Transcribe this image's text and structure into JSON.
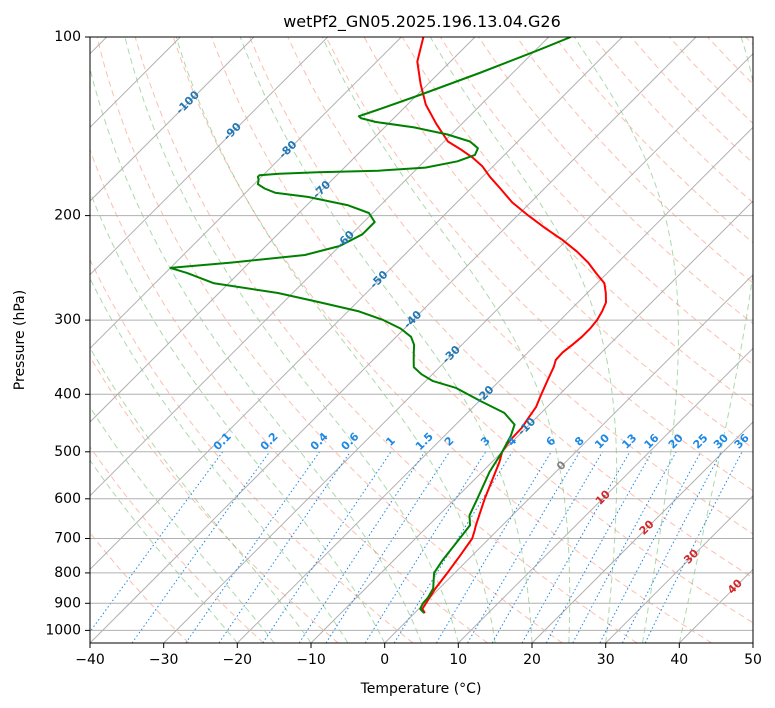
{
  "chart_data": {
    "type": "line",
    "subtype": "skew-T log-P diagram",
    "title": "wetPf2_GN05.2025.196.13.04.G26",
    "xlabel": "Temperature (°C)",
    "ylabel": "Pressure (hPa)",
    "xlim": [
      -40,
      50
    ],
    "ylim": [
      1050,
      100
    ],
    "y_scale": "log",
    "grid": true,
    "x_ticks": [
      "−40",
      "−30",
      "−20",
      "−10",
      "0",
      "10",
      "20",
      "30",
      "40",
      "50"
    ],
    "y_ticks": [
      "100",
      "200",
      "300",
      "400",
      "500",
      "600",
      "700",
      "800",
      "900",
      "1000"
    ],
    "series": [
      {
        "color": "#ff0000",
        "points": [
          [
            1.4,
            935
          ],
          [
            0.5,
            920
          ],
          [
            0.2,
            900
          ],
          [
            -0.5,
            850
          ],
          [
            -1.0,
            800
          ],
          [
            -1.6,
            750
          ],
          [
            -2.3,
            700
          ],
          [
            -3.0,
            680
          ],
          [
            -3.6,
            665
          ],
          [
            -6.0,
            600
          ],
          [
            -9.0,
            520
          ],
          [
            -10.0,
            500
          ],
          [
            -10.5,
            480
          ],
          [
            -10.6,
            455
          ],
          [
            -11.0,
            440
          ],
          [
            -11.5,
            420
          ],
          [
            -12.5,
            400
          ],
          [
            -13.5,
            380
          ],
          [
            -14.5,
            360
          ],
          [
            -15.2,
            350
          ],
          [
            -15.3,
            340
          ],
          [
            -15.0,
            330
          ],
          [
            -14.8,
            320
          ],
          [
            -14.8,
            310
          ],
          [
            -15.0,
            300
          ],
          [
            -15.5,
            290
          ],
          [
            -16.2,
            280
          ],
          [
            -17.5,
            270
          ],
          [
            -19.0,
            260
          ],
          [
            -21.5,
            250
          ],
          [
            -24.0,
            240
          ],
          [
            -27.0,
            230
          ],
          [
            -30.5,
            220
          ],
          [
            -34.5,
            210
          ],
          [
            -38.5,
            200
          ],
          [
            -42.5,
            190
          ],
          [
            -46.0,
            180
          ],
          [
            -49.0,
            172
          ],
          [
            -51.5,
            165
          ],
          [
            -53.8,
            160
          ],
          [
            -56.5,
            155
          ],
          [
            -59.5,
            150
          ],
          [
            -63.5,
            140
          ],
          [
            -67.5,
            130
          ],
          [
            -71.0,
            120
          ],
          [
            -74.5,
            110
          ],
          [
            -77.0,
            100
          ]
        ]
      },
      {
        "color": "#008000",
        "points": [
          [
            1.3,
            935
          ],
          [
            0.2,
            920
          ],
          [
            -0.2,
            900
          ],
          [
            -0.3,
            880
          ],
          [
            -0.8,
            850
          ],
          [
            -2.0,
            820
          ],
          [
            -2.8,
            800
          ],
          [
            -3.4,
            760
          ],
          [
            -4.0,
            700
          ],
          [
            -4.4,
            665
          ],
          [
            -5.8,
            640
          ],
          [
            -7.0,
            600
          ],
          [
            -9.0,
            540
          ],
          [
            -10.0,
            500
          ],
          [
            -11.0,
            470
          ],
          [
            -12.0,
            450
          ],
          [
            -15.0,
            430
          ],
          [
            -20.0,
            410
          ],
          [
            -25.0,
            390
          ],
          [
            -29.0,
            380
          ],
          [
            -31.5,
            370
          ],
          [
            -33.5,
            360
          ],
          [
            -34.5,
            350
          ],
          [
            -35.5,
            340
          ],
          [
            -36.5,
            330
          ],
          [
            -38.0,
            320
          ],
          [
            -40.5,
            310
          ],
          [
            -44.0,
            300
          ],
          [
            -48.5,
            290
          ],
          [
            -55.0,
            280
          ],
          [
            -62.0,
            270
          ],
          [
            -72.0,
            260
          ],
          [
            -77.0,
            250
          ],
          [
            -80.0,
            245
          ],
          [
            -72.5,
            240
          ],
          [
            -63.5,
            233
          ],
          [
            -60.0,
            225
          ],
          [
            -58.5,
            215
          ],
          [
            -58.5,
            205
          ],
          [
            -60.5,
            198
          ],
          [
            -64.5,
            192
          ],
          [
            -71.0,
            186
          ],
          [
            -76.0,
            183
          ],
          [
            -78.0,
            180
          ],
          [
            -79.5,
            177
          ],
          [
            -80.0,
            174
          ],
          [
            -80.5,
            172
          ],
          [
            -80.5,
            171
          ],
          [
            -78.0,
            170
          ],
          [
            -73.0,
            169
          ],
          [
            -65.0,
            168
          ],
          [
            -59.0,
            166
          ],
          [
            -55.5,
            162
          ],
          [
            -54.0,
            158
          ],
          [
            -54.5,
            154
          ],
          [
            -56.5,
            150
          ],
          [
            -60.5,
            146
          ],
          [
            -66.0,
            142
          ],
          [
            -72.0,
            139
          ],
          [
            -74.5,
            137
          ],
          [
            -75.0,
            136
          ],
          [
            -73.5,
            133
          ],
          [
            -69.5,
            125
          ],
          [
            -64.5,
            115
          ],
          [
            -59.5,
            105
          ],
          [
            -57.0,
            100
          ]
        ]
      }
    ],
    "isotherm_labels": [
      "−100",
      "−90",
      "−80",
      "−70",
      "−60",
      "−50",
      "−40",
      "−30",
      "−20",
      "−10",
      "0",
      "10",
      "20",
      "30",
      "40"
    ],
    "mixing_ratio_labels": [
      "0.1",
      "0.2",
      "0.4",
      "0.6",
      "1",
      "1.5",
      "2",
      "3",
      "4",
      "6",
      "8",
      "10",
      "13",
      "16",
      "20",
      "25",
      "30",
      "36"
    ],
    "colors": {
      "isotherm_label_cold": "#1f77b4",
      "isotherm_label_zero": "#808080",
      "isotherm_label_warm": "#d62728",
      "mixing_ratio": "#1e88e5",
      "dry_adiabat": "#fa8060",
      "moist_adiabat": "#2ca02c",
      "grid": "#b0b0b0"
    }
  }
}
